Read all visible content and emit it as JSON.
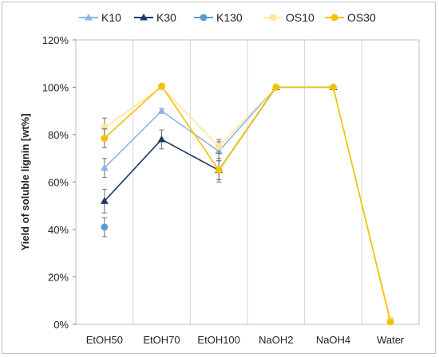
{
  "chart_data": {
    "type": "line",
    "categories": [
      "EtOH50",
      "EtOH70",
      "EtOH100",
      "NaOH2",
      "NaOH4",
      "Water"
    ],
    "ylabel": "Yield of soluble lignin [wt%]",
    "ylim": [
      0,
      120
    ],
    "yticks": [
      0,
      20,
      40,
      60,
      80,
      100,
      120
    ],
    "ytick_labels": [
      "0%",
      "20%",
      "40%",
      "60%",
      "80%",
      "100%",
      "120%"
    ],
    "grid": "vertical lines between categories",
    "legend_position": "top",
    "series": [
      {
        "name": "K10",
        "marker": "triangle",
        "color": "#8fb6df",
        "values": [
          66,
          90,
          73,
          100,
          100,
          null
        ],
        "errors": [
          4,
          1,
          4,
          null,
          null,
          null
        ]
      },
      {
        "name": "K30",
        "marker": "triangle",
        "color": "#1f3864",
        "values": [
          52,
          78,
          65,
          100,
          100,
          null
        ],
        "errors": [
          5,
          4,
          4,
          null,
          null,
          null
        ]
      },
      {
        "name": "K130",
        "marker": "circle",
        "color": "#5b9bd5",
        "values": [
          41,
          null,
          null,
          null,
          null,
          null
        ],
        "errors": [
          4,
          null,
          null,
          null,
          null,
          null
        ]
      },
      {
        "name": "OS10",
        "marker": "circle",
        "color": "#ffe699",
        "values": [
          83,
          100,
          75,
          100,
          100,
          2
        ],
        "errors": [
          4,
          1,
          3,
          null,
          null,
          1
        ]
      },
      {
        "name": "OS30",
        "marker": "circle",
        "color": "#f5c000",
        "values": [
          78.5,
          100.5,
          65,
          100,
          100,
          1
        ],
        "errors": [
          4,
          1,
          5,
          null,
          null,
          1
        ]
      }
    ]
  }
}
